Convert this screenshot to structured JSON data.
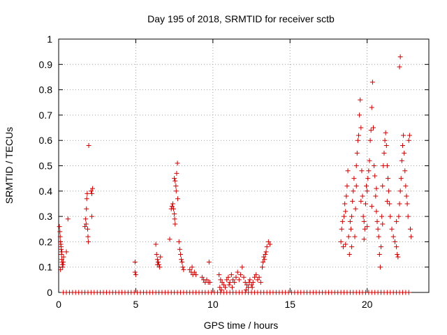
{
  "chart_data": {
    "type": "scatter",
    "title": "Day 195 of 2018, SRMTID for receiver sctb",
    "xlabel": "GPS time / hours",
    "ylabel": "SRMTID / TECUs",
    "xlim": [
      0,
      24
    ],
    "ylim": [
      0,
      1
    ],
    "grid": true,
    "marker": "+",
    "color": "#cc0000",
    "x_ticks": [
      0,
      5,
      10,
      15,
      20
    ],
    "x_tick_labels": [
      "0",
      "5",
      "10",
      "15",
      "20"
    ],
    "y_ticks": [
      0,
      0.1,
      0.2,
      0.3,
      0.4,
      0.5,
      0.6,
      0.7,
      0.8,
      0.9,
      1
    ],
    "y_tick_labels": [
      "0",
      "0.1",
      "0.2",
      "0.3",
      "0.4",
      "0.5",
      "0.6",
      "0.7",
      "0.8",
      "0.9",
      "1"
    ],
    "series": [
      {
        "name": "SRMTID",
        "points": [
          [
            0.05,
            0.26
          ],
          [
            0.08,
            0.24
          ],
          [
            0.1,
            0.22
          ],
          [
            0.12,
            0.2
          ],
          [
            0.14,
            0.19
          ],
          [
            0.16,
            0.17
          ],
          [
            0.18,
            0.15
          ],
          [
            0.2,
            0.13
          ],
          [
            0.22,
            0.12
          ],
          [
            0.24,
            0.11
          ],
          [
            0.26,
            0.1
          ],
          [
            0.28,
            0.11
          ],
          [
            0.12,
            0.09
          ],
          [
            0.16,
            0.18
          ],
          [
            0.2,
            0.16
          ],
          [
            0.3,
            0.12
          ],
          [
            0.32,
            0.14
          ],
          [
            0.5,
            0.16
          ],
          [
            0.6,
            0.29
          ],
          [
            1.7,
            0.26
          ],
          [
            1.75,
            0.29
          ],
          [
            1.8,
            0.33
          ],
          [
            1.82,
            0.37
          ],
          [
            1.85,
            0.39
          ],
          [
            1.88,
            0.25
          ],
          [
            1.9,
            0.22
          ],
          [
            1.92,
            0.2
          ],
          [
            1.95,
            0.58
          ],
          [
            1.78,
            0.27
          ],
          [
            2.1,
            0.4
          ],
          [
            2.15,
            0.39
          ],
          [
            2.2,
            0.41
          ],
          [
            2.15,
            0.3
          ],
          [
            4.95,
            0.12
          ],
          [
            4.95,
            0.08
          ],
          [
            5.0,
            0.07
          ],
          [
            6.3,
            0.19
          ],
          [
            6.35,
            0.15
          ],
          [
            6.4,
            0.13
          ],
          [
            6.45,
            0.12
          ],
          [
            6.5,
            0.11
          ],
          [
            6.55,
            0.1
          ],
          [
            6.4,
            0.11
          ],
          [
            6.6,
            0.14
          ],
          [
            7.2,
            0.21
          ],
          [
            7.3,
            0.33
          ],
          [
            7.35,
            0.34
          ],
          [
            7.4,
            0.35
          ],
          [
            7.45,
            0.33
          ],
          [
            7.5,
            0.31
          ],
          [
            7.52,
            0.29
          ],
          [
            7.55,
            0.27
          ],
          [
            7.5,
            0.45
          ],
          [
            7.55,
            0.44
          ],
          [
            7.6,
            0.42
          ],
          [
            7.62,
            0.4
          ],
          [
            7.65,
            0.47
          ],
          [
            7.7,
            0.51
          ],
          [
            7.72,
            0.37
          ],
          [
            7.8,
            0.2
          ],
          [
            7.85,
            0.17
          ],
          [
            7.9,
            0.15
          ],
          [
            7.95,
            0.13
          ],
          [
            8.0,
            0.12
          ],
          [
            8.05,
            0.1
          ],
          [
            8.1,
            0.09
          ],
          [
            8.5,
            0.09
          ],
          [
            8.6,
            0.08
          ],
          [
            8.7,
            0.07
          ],
          [
            8.8,
            0.08
          ],
          [
            8.9,
            0.07
          ],
          [
            8.65,
            0.1
          ],
          [
            9.3,
            0.06
          ],
          [
            9.4,
            0.05
          ],
          [
            9.5,
            0.04
          ],
          [
            9.6,
            0.05
          ],
          [
            9.7,
            0.04
          ],
          [
            9.75,
            0.12
          ],
          [
            9.8,
            0.04
          ],
          [
            10.4,
            0.07
          ],
          [
            10.5,
            0.05
          ],
          [
            10.6,
            0.04
          ],
          [
            10.7,
            0.03
          ],
          [
            10.8,
            0.02
          ],
          [
            10.9,
            0.05
          ],
          [
            11.0,
            0.06
          ],
          [
            11.1,
            0.04
          ],
          [
            11.2,
            0.07
          ],
          [
            11.3,
            0.05
          ],
          [
            11.4,
            0.04
          ],
          [
            11.5,
            0.06
          ],
          [
            11.6,
            0.08
          ],
          [
            11.7,
            0.05
          ],
          [
            11.8,
            0.07
          ],
          [
            11.9,
            0.1
          ],
          [
            12.0,
            0.06
          ],
          [
            12.1,
            0.04
          ],
          [
            12.2,
            0.03
          ],
          [
            12.3,
            0.02
          ],
          [
            12.4,
            0.05
          ],
          [
            12.5,
            0.03
          ],
          [
            12.6,
            0.04
          ],
          [
            12.7,
            0.06
          ],
          [
            12.8,
            0.07
          ],
          [
            12.9,
            0.05
          ],
          [
            13.0,
            0.06
          ],
          [
            13.1,
            0.04
          ],
          [
            10.45,
            0.02
          ],
          [
            10.55,
            0.01
          ],
          [
            11.05,
            0.03
          ],
          [
            11.25,
            0.02
          ],
          [
            12.15,
            0.01
          ],
          [
            12.35,
            0.04
          ],
          [
            12.55,
            0.02
          ],
          [
            13.2,
            0.1
          ],
          [
            13.25,
            0.12
          ],
          [
            13.3,
            0.14
          ],
          [
            13.35,
            0.13
          ],
          [
            13.4,
            0.15
          ],
          [
            13.45,
            0.16
          ],
          [
            13.5,
            0.18
          ],
          [
            13.6,
            0.2
          ],
          [
            13.7,
            0.19
          ],
          [
            18.3,
            0.2
          ],
          [
            18.35,
            0.25
          ],
          [
            18.4,
            0.28
          ],
          [
            18.45,
            0.18
          ],
          [
            18.5,
            0.3
          ],
          [
            18.55,
            0.35
          ],
          [
            18.6,
            0.32
          ],
          [
            18.65,
            0.38
          ],
          [
            18.7,
            0.42
          ],
          [
            18.75,
            0.48
          ],
          [
            18.8,
            0.22
          ],
          [
            18.85,
            0.15
          ],
          [
            18.9,
            0.28
          ],
          [
            18.95,
            0.25
          ],
          [
            19.0,
            0.3
          ],
          [
            19.05,
            0.36
          ],
          [
            19.1,
            0.4
          ],
          [
            19.15,
            0.45
          ],
          [
            19.2,
            0.22
          ],
          [
            19.25,
            0.33
          ],
          [
            19.3,
            0.5
          ],
          [
            19.35,
            0.55
          ],
          [
            19.4,
            0.6
          ],
          [
            19.45,
            0.62
          ],
          [
            19.5,
            0.7
          ],
          [
            19.55,
            0.76
          ],
          [
            19.6,
            0.65
          ],
          [
            19.65,
            0.48
          ],
          [
            19.7,
            0.38
          ],
          [
            19.75,
            0.3
          ],
          [
            19.8,
            0.28
          ],
          [
            19.85,
            0.25
          ],
          [
            19.9,
            0.35
          ],
          [
            19.95,
            0.42
          ],
          [
            20.0,
            0.4
          ],
          [
            20.05,
            0.45
          ],
          [
            20.1,
            0.48
          ],
          [
            20.15,
            0.52
          ],
          [
            20.2,
            0.6
          ],
          [
            20.25,
            0.64
          ],
          [
            20.3,
            0.73
          ],
          [
            20.35,
            0.83
          ],
          [
            20.4,
            0.65
          ],
          [
            20.45,
            0.5
          ],
          [
            20.5,
            0.46
          ],
          [
            20.55,
            0.38
          ],
          [
            20.6,
            0.32
          ],
          [
            20.65,
            0.28
          ],
          [
            20.7,
            0.25
          ],
          [
            20.75,
            0.22
          ],
          [
            20.8,
            0.15
          ],
          [
            20.85,
            0.1
          ],
          [
            20.9,
            0.18
          ],
          [
            20.95,
            0.3
          ],
          [
            21.0,
            0.42
          ],
          [
            21.05,
            0.5
          ],
          [
            21.1,
            0.55
          ],
          [
            21.15,
            0.6
          ],
          [
            21.2,
            0.63
          ],
          [
            21.25,
            0.58
          ],
          [
            21.3,
            0.5
          ],
          [
            21.35,
            0.45
          ],
          [
            21.4,
            0.4
          ],
          [
            21.45,
            0.35
          ],
          [
            21.5,
            0.3
          ],
          [
            21.6,
            0.25
          ],
          [
            21.7,
            0.22
          ],
          [
            21.8,
            0.2
          ],
          [
            21.9,
            0.18
          ],
          [
            21.95,
            0.15
          ],
          [
            22.0,
            0.14
          ],
          [
            22.05,
            0.3
          ],
          [
            22.1,
            0.35
          ],
          [
            22.15,
            0.4
          ],
          [
            22.2,
            0.45
          ],
          [
            22.25,
            0.52
          ],
          [
            22.3,
            0.58
          ],
          [
            22.35,
            0.62
          ],
          [
            22.4,
            0.55
          ],
          [
            22.45,
            0.48
          ],
          [
            22.5,
            0.42
          ],
          [
            22.55,
            0.38
          ],
          [
            22.6,
            0.35
          ],
          [
            22.65,
            0.3
          ],
          [
            22.7,
            0.6
          ],
          [
            22.75,
            0.62
          ],
          [
            22.8,
            0.25
          ],
          [
            22.85,
            0.22
          ],
          [
            22.1,
            0.89
          ],
          [
            22.15,
            0.93
          ],
          [
            19.3,
            0.42
          ],
          [
            19.6,
            0.36
          ],
          [
            20.0,
            0.26
          ],
          [
            20.3,
            0.34
          ],
          [
            20.6,
            0.41
          ],
          [
            21.0,
            0.27
          ],
          [
            21.3,
            0.36
          ],
          [
            21.9,
            0.28
          ],
          [
            18.6,
            0.19
          ],
          [
            19.0,
            0.18
          ],
          [
            19.8,
            0.21
          ]
        ],
        "zero_points_x": [
          0.3,
          0.5,
          0.7,
          0.9,
          1.1,
          1.3,
          1.5,
          1.7,
          1.9,
          2.1,
          2.3,
          2.5,
          2.7,
          2.9,
          3.1,
          3.3,
          3.5,
          3.7,
          3.9,
          4.1,
          4.3,
          4.5,
          4.7,
          4.9,
          5.1,
          5.3,
          5.5,
          5.7,
          5.9,
          6.1,
          6.3,
          6.5,
          6.7,
          6.9,
          7.1,
          7.3,
          7.5,
          7.7,
          7.9,
          8.1,
          8.3,
          8.5,
          8.7,
          8.9,
          9.1,
          9.3,
          9.5,
          9.7,
          9.9,
          10.1,
          10.3,
          10.5,
          10.7,
          10.9,
          11.1,
          11.3,
          11.5,
          11.7,
          11.9,
          12.1,
          12.3,
          12.5,
          12.7,
          12.9,
          13.1,
          13.3,
          13.5,
          13.7,
          13.9,
          14.1,
          14.3,
          14.5,
          14.7,
          14.9,
          15.1,
          15.3,
          15.5,
          15.7,
          15.9,
          16.1,
          16.3,
          16.5,
          16.7,
          16.9,
          17.1,
          17.3,
          17.5,
          17.7,
          17.9,
          18.1,
          18.3,
          18.5,
          18.7,
          18.9,
          19.1,
          19.3,
          19.5,
          19.7,
          19.9,
          20.1,
          20.3,
          20.5,
          20.7,
          20.9,
          21.1,
          21.3,
          21.5,
          21.7,
          21.9,
          22.1,
          22.3,
          22.5,
          22.7
        ]
      }
    ]
  }
}
